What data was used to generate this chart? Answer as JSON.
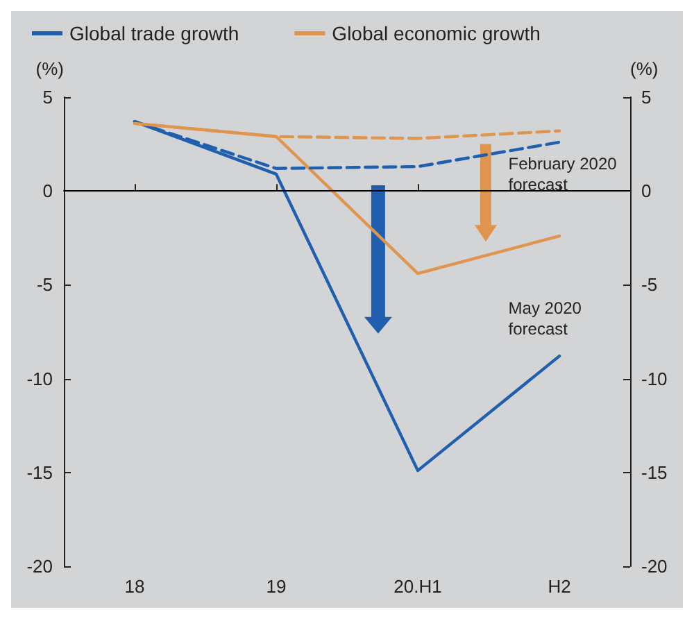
{
  "chart_data": {
    "type": "line",
    "categories": [
      "18",
      "19",
      "20.H1",
      "H2"
    ],
    "series": [
      {
        "name": "Global trade growth",
        "color": "#1f5fad",
        "values": [
          3.7,
          0.9,
          -14.9,
          -8.8
        ]
      },
      {
        "name": "Global economic growth",
        "color": "#e0954f",
        "values": [
          3.6,
          2.9,
          -4.4,
          -2.4
        ]
      },
      {
        "color": "#1f5fad",
        "values": [
          3.7,
          1.2,
          1.3,
          2.6
        ],
        "line_style": "dashed"
      },
      {
        "color": "#e0954f",
        "values": [
          3.6,
          2.9,
          2.8,
          3.2
        ],
        "line_style": "dashed"
      }
    ],
    "ylabel": "(%)",
    "y2label": "(%)",
    "ylim": [
      -20,
      5
    ],
    "yticks": [
      -20,
      -15,
      -10,
      -5,
      0,
      5
    ],
    "y2lim": [
      -20,
      5
    ],
    "y2ticks": [
      -20,
      -15,
      -10,
      -5,
      0,
      5
    ],
    "ref_lines": [
      {
        "axis": "y",
        "value": 0,
        "color": "#000000"
      }
    ],
    "annotations": [
      "February 2020 forecast",
      "May 2020 forecast"
    ],
    "legend": "top left",
    "grid": false,
    "marker": "none",
    "line_style": "solid"
  }
}
